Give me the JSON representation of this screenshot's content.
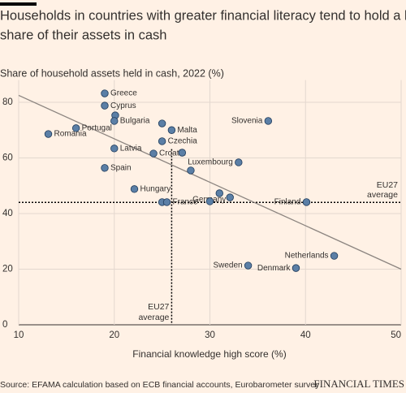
{
  "chart_data": {
    "type": "scatter",
    "title_lines": [
      "Households in countries with greater financial literacy tend to hold a lower",
      "share of their assets in cash"
    ],
    "subtitle": "Share of household assets held in cash, 2022 (%)",
    "x_label": "Financial knowledge high score (%)",
    "source": "Source: EFAMA calculation based on ECB financial accounts, Eurobarometer survey",
    "brand": "FINANCIAL TIMES",
    "color": "#5b7fa6",
    "xlim": [
      10,
      50
    ],
    "ylim": [
      0,
      88
    ],
    "xticks": [
      10,
      20,
      30,
      40,
      50
    ],
    "yticks": [
      0,
      20,
      40,
      60,
      80
    ],
    "grid": true,
    "x": [
      19,
      19,
      20.1,
      20,
      25,
      26,
      36.1,
      16,
      13.1,
      25,
      20,
      24.1,
      27.1,
      33,
      19,
      28,
      22.1,
      31,
      32.1,
      25,
      25.5,
      30,
      40.1,
      43,
      34,
      39
    ],
    "y": [
      83.2,
      78.8,
      75.3,
      73.3,
      72.4,
      70,
      73.3,
      70.7,
      68.6,
      66,
      63.4,
      61.6,
      61.9,
      58.4,
      56.4,
      55.5,
      48.8,
      47.3,
      45.8,
      44.1,
      44.1,
      44.4,
      44.1,
      24.8,
      21.3,
      20.4
    ],
    "labels": [
      "Greece",
      "Cyprus",
      null,
      "Bulgaria",
      null,
      "Malta",
      "Slovenia",
      "Portugal",
      "Romania",
      "Czechia",
      "Latvia",
      "Croatia",
      null,
      "Luxembourg",
      "Spain",
      null,
      "Hungary",
      "Germany",
      null,
      null,
      "France",
      null,
      "Finland",
      "Netherlands",
      "Sweden",
      "Denmark"
    ],
    "trendline": {
      "x": [
        10,
        50
      ],
      "y": [
        82.5,
        20
      ]
    },
    "eu_avg_x": {
      "value": 26,
      "label_lines": [
        "EU27",
        "average"
      ]
    },
    "eu_avg_y": {
      "value": 44,
      "label_lines": [
        "EU27",
        "average"
      ]
    }
  }
}
